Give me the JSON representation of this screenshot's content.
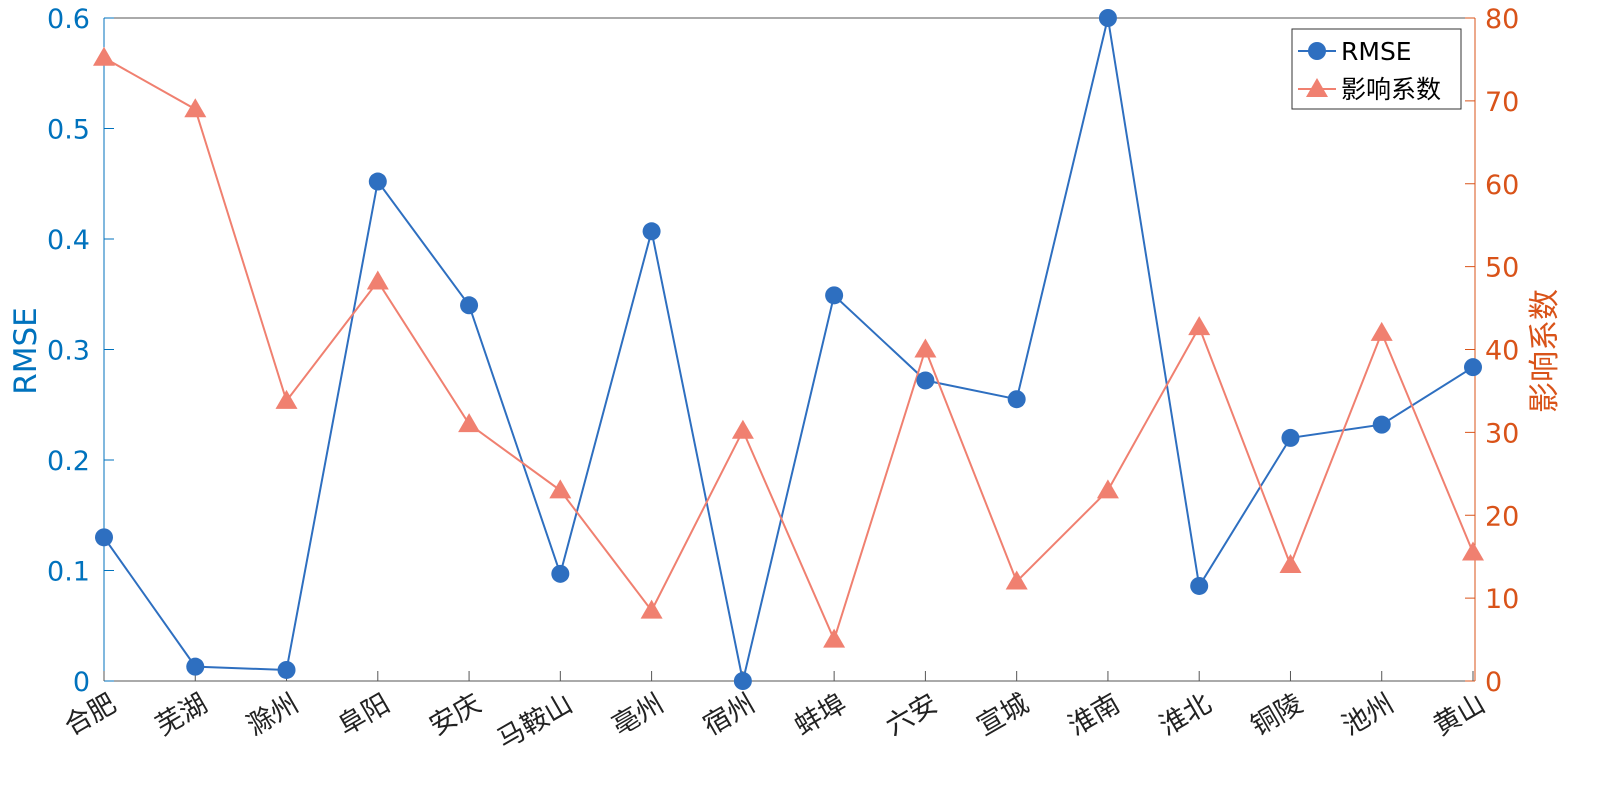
{
  "chart_data": {
    "type": "line",
    "categories": [
      "合肥",
      "芜湖",
      "滁州",
      "阜阳",
      "安庆",
      "马鞍山",
      "亳州",
      "宿州",
      "蚌埠",
      "六安",
      "宣城",
      "淮南",
      "淮北",
      "铜陵",
      "池州",
      "黄山"
    ],
    "series": [
      {
        "name": "RMSE",
        "axis": "left",
        "marker": "circle",
        "color": "#2E6FC0",
        "values": [
          0.13,
          0.013,
          0.01,
          0.452,
          0.34,
          0.097,
          0.407,
          0.0,
          0.349,
          0.272,
          0.255,
          0.6,
          0.086,
          0.22,
          0.232,
          0.284
        ]
      },
      {
        "name": "影响系数",
        "axis": "right",
        "marker": "triangle",
        "color": "#F08070",
        "values": [
          75.2,
          69.0,
          33.8,
          48.2,
          31.0,
          23.0,
          8.5,
          30.2,
          5.0,
          40.0,
          12.0,
          23.0,
          42.7,
          14.0,
          42.0,
          15.5
        ]
      }
    ],
    "ylabel_left": "RMSE",
    "ylabel_right": "影响系数",
    "ylim_left": [
      0,
      0.6
    ],
    "ylim_right": [
      0,
      80
    ],
    "yticks_left": [
      "0",
      "0.1",
      "0.2",
      "0.3",
      "0.4",
      "0.5",
      "0.6"
    ],
    "yticks_right": [
      "0",
      "10",
      "20",
      "30",
      "40",
      "50",
      "60",
      "70",
      "80"
    ],
    "left_axis_color": "#0072BD",
    "right_axis_color": "#D95319",
    "grid": false,
    "legend_position": "top-right"
  }
}
